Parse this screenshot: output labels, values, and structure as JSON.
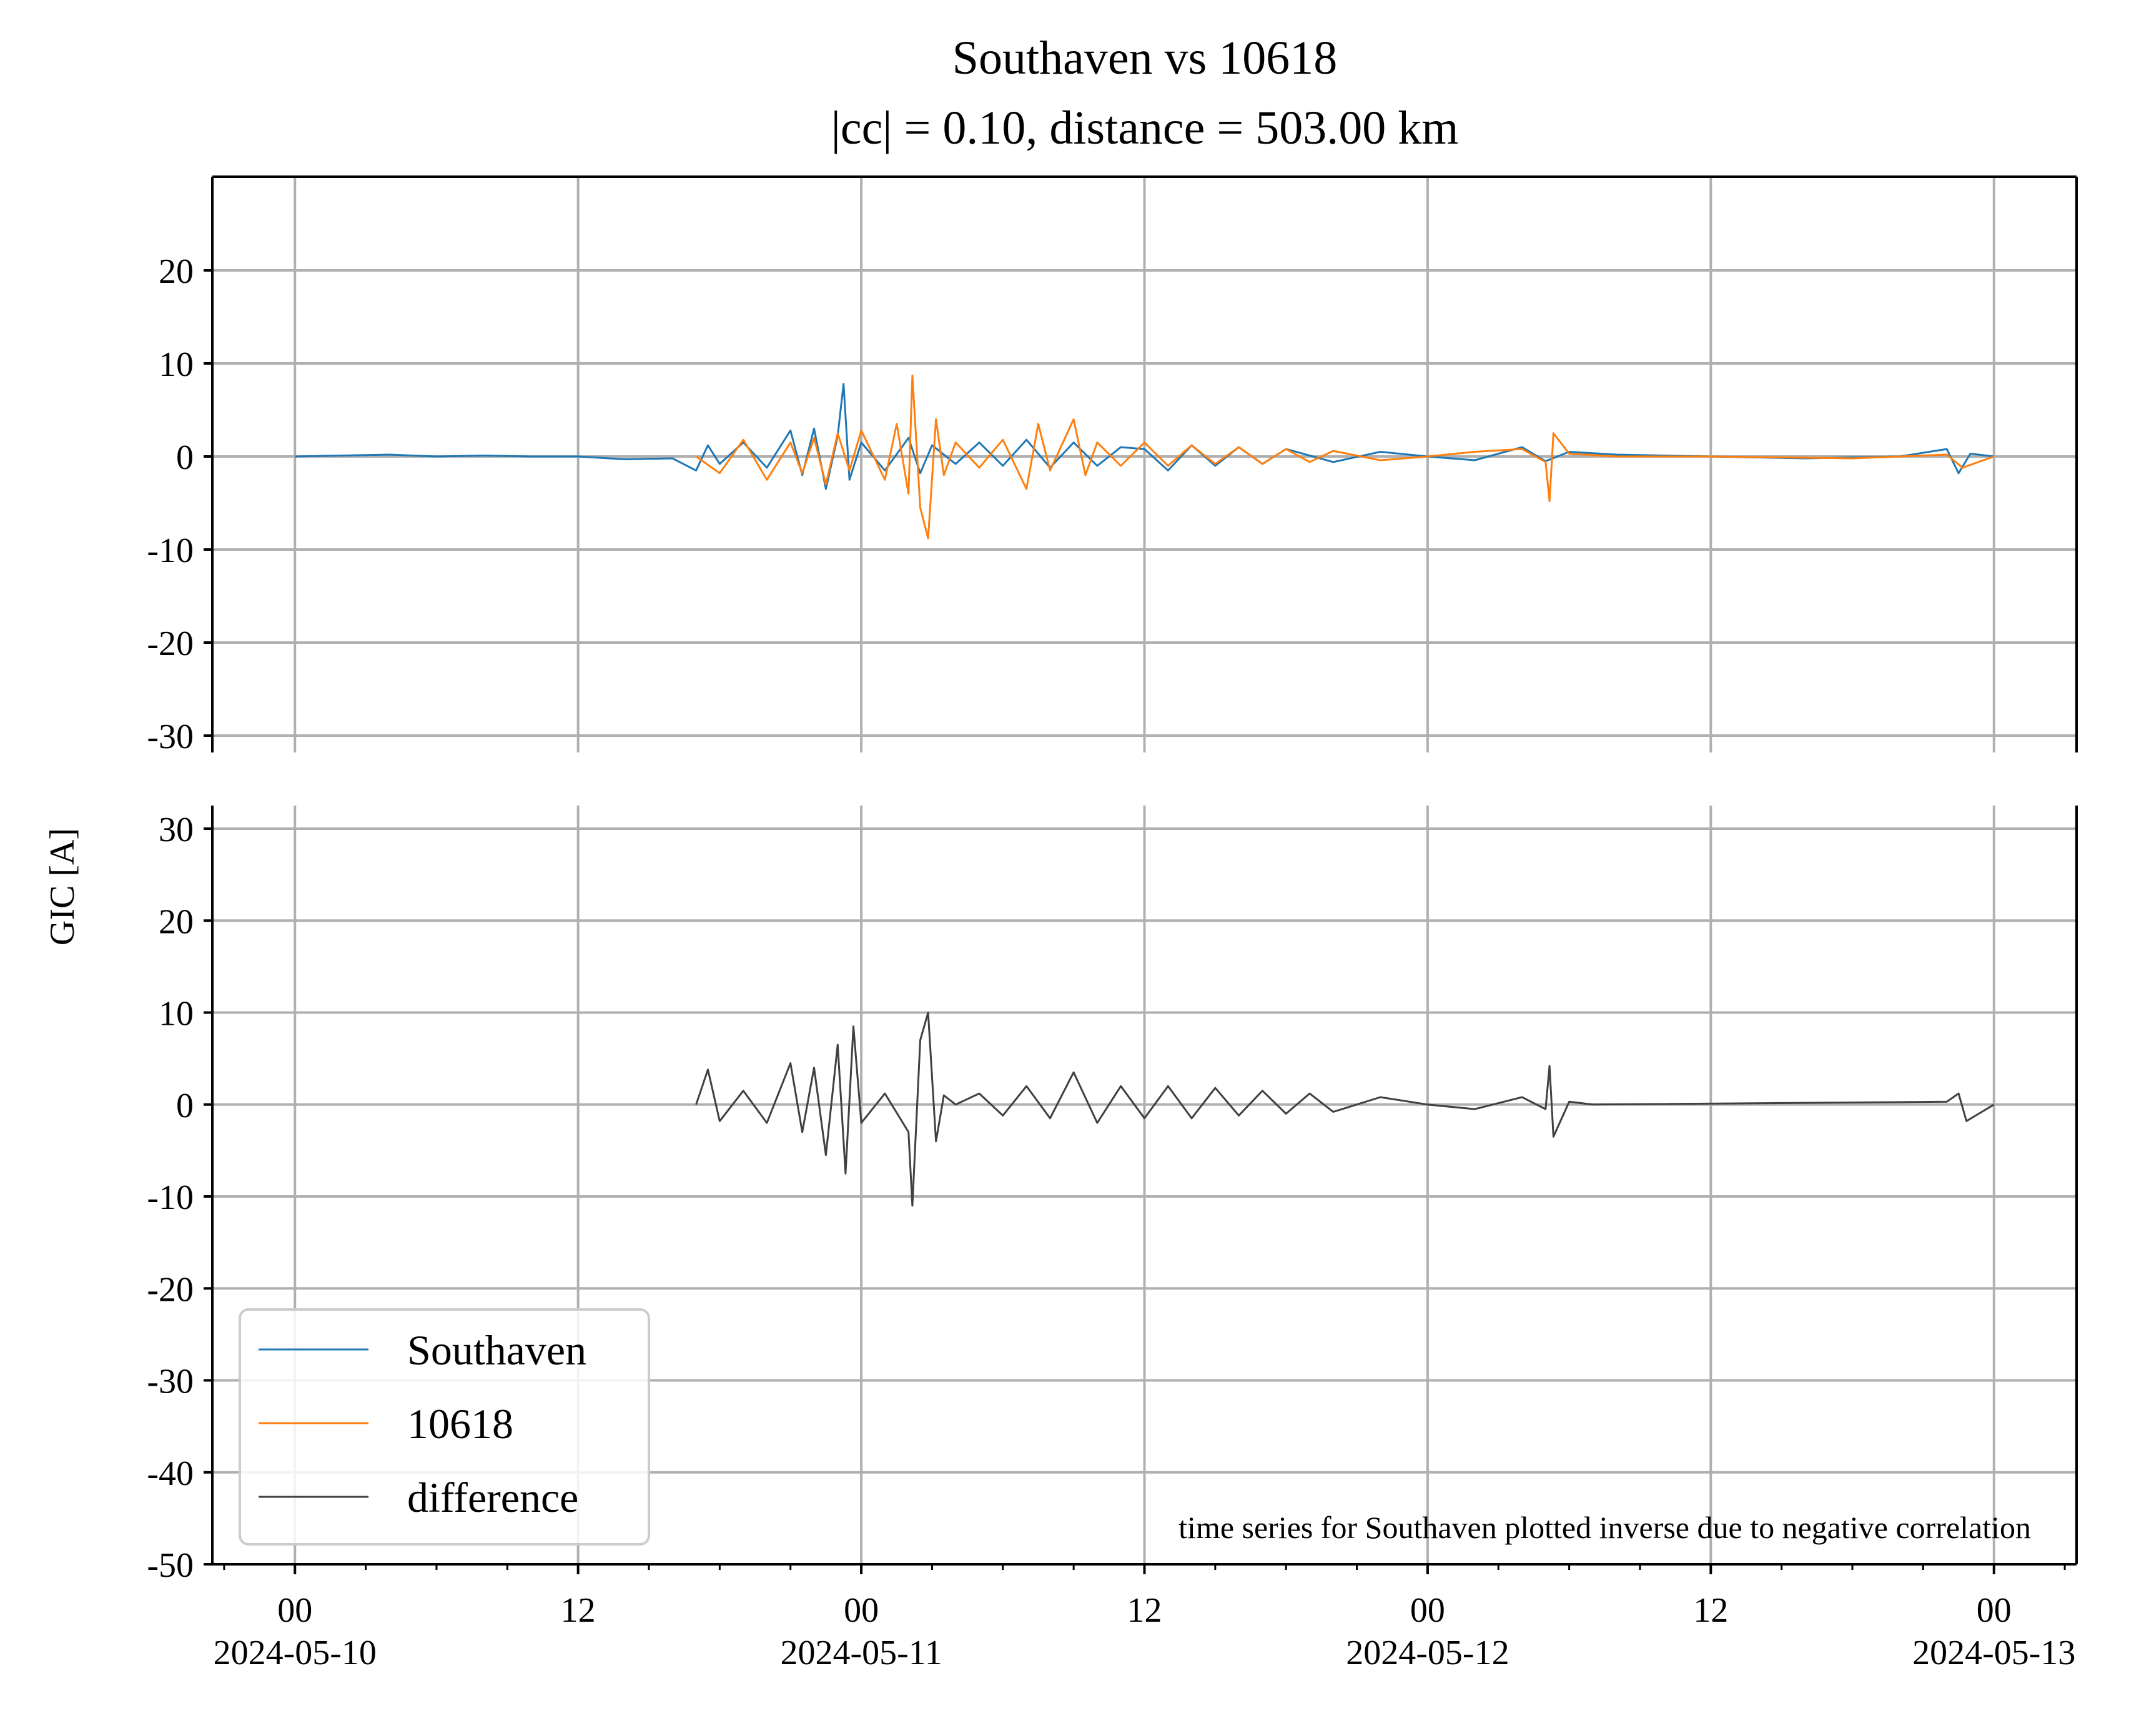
{
  "colors": {
    "southaven": "#1f77b4",
    "s10618": "#ff7f0e",
    "difference": "#404040",
    "grid": "#b0b0b0"
  },
  "chart_data": {
    "type": "line",
    "title_line1": "Southaven vs 10618",
    "title_line2": "|cc| = 0.10, distance = 503.00 km",
    "ylabel": "GIC [A]",
    "annotation": "time series for Southaven plotted inverse due to negative correlation",
    "x_range": [
      "2024-05-09T20:30",
      "2024-05-13T03:30"
    ],
    "x_ticks": [
      {
        "t": "2024-05-10T00:00",
        "time": "00",
        "date": "2024-05-10"
      },
      {
        "t": "2024-05-10T12:00",
        "time": "12",
        "date": ""
      },
      {
        "t": "2024-05-11T00:00",
        "time": "00",
        "date": "2024-05-11"
      },
      {
        "t": "2024-05-11T12:00",
        "time": "12",
        "date": ""
      },
      {
        "t": "2024-05-12T00:00",
        "time": "00",
        "date": "2024-05-12"
      },
      {
        "t": "2024-05-12T12:00",
        "time": "12",
        "date": ""
      },
      {
        "t": "2024-05-13T00:00",
        "time": "00",
        "date": "2024-05-13"
      }
    ],
    "top_panel": {
      "ylim": [
        -30,
        30
      ],
      "yticks": [
        20,
        10,
        0,
        -10,
        -20,
        -30
      ],
      "ytick_labels": [
        "20",
        "10",
        "0",
        "-10",
        "-20",
        "-30"
      ],
      "series": [
        {
          "name": "Southaven",
          "color": "#1f77b4",
          "points": [
            [
              "2024-05-10T00:00",
              0.0
            ],
            [
              "2024-05-10T02:00",
              0.1
            ],
            [
              "2024-05-10T04:00",
              0.2
            ],
            [
              "2024-05-10T06:00",
              0.0
            ],
            [
              "2024-05-10T08:00",
              0.1
            ],
            [
              "2024-05-10T10:00",
              0.0
            ],
            [
              "2024-05-10T12:00",
              0.0
            ],
            [
              "2024-05-10T14:00",
              -0.3
            ],
            [
              "2024-05-10T16:00",
              -0.2
            ],
            [
              "2024-05-10T17:00",
              -1.5
            ],
            [
              "2024-05-10T17:30",
              1.2
            ],
            [
              "2024-05-10T18:00",
              -0.8
            ],
            [
              "2024-05-10T19:00",
              1.5
            ],
            [
              "2024-05-10T20:00",
              -1.2
            ],
            [
              "2024-05-10T21:00",
              2.8
            ],
            [
              "2024-05-10T21:30",
              -2.0
            ],
            [
              "2024-05-10T22:00",
              3.0
            ],
            [
              "2024-05-10T22:30",
              -3.5
            ],
            [
              "2024-05-10T23:00",
              2.2
            ],
            [
              "2024-05-10T23:15",
              7.8
            ],
            [
              "2024-05-10T23:30",
              -2.5
            ],
            [
              "2024-05-11T00:00",
              1.5
            ],
            [
              "2024-05-11T01:00",
              -1.5
            ],
            [
              "2024-05-11T02:00",
              2.0
            ],
            [
              "2024-05-11T02:30",
              -1.8
            ],
            [
              "2024-05-11T03:00",
              1.2
            ],
            [
              "2024-05-11T04:00",
              -0.8
            ],
            [
              "2024-05-11T05:00",
              1.5
            ],
            [
              "2024-05-11T06:00",
              -1.0
            ],
            [
              "2024-05-11T07:00",
              1.8
            ],
            [
              "2024-05-11T08:00",
              -1.2
            ],
            [
              "2024-05-11T09:00",
              1.5
            ],
            [
              "2024-05-11T10:00",
              -1.0
            ],
            [
              "2024-05-11T11:00",
              1.0
            ],
            [
              "2024-05-11T12:00",
              0.8
            ],
            [
              "2024-05-11T13:00",
              -1.5
            ],
            [
              "2024-05-11T14:00",
              1.2
            ],
            [
              "2024-05-11T15:00",
              -1.0
            ],
            [
              "2024-05-11T16:00",
              1.0
            ],
            [
              "2024-05-11T17:00",
              -0.8
            ],
            [
              "2024-05-11T18:00",
              0.8
            ],
            [
              "2024-05-11T20:00",
              -0.6
            ],
            [
              "2024-05-11T22:00",
              0.5
            ],
            [
              "2024-05-12T00:00",
              0.0
            ],
            [
              "2024-05-12T02:00",
              -0.4
            ],
            [
              "2024-05-12T04:00",
              1.0
            ],
            [
              "2024-05-12T05:00",
              -0.5
            ],
            [
              "2024-05-12T06:00",
              0.5
            ],
            [
              "2024-05-12T08:00",
              0.2
            ],
            [
              "2024-05-12T12:00",
              0.0
            ],
            [
              "2024-05-12T16:00",
              -0.2
            ],
            [
              "2024-05-12T20:00",
              0.0
            ],
            [
              "2024-05-12T22:00",
              0.8
            ],
            [
              "2024-05-12T22:30",
              -1.8
            ],
            [
              "2024-05-12T23:00",
              0.3
            ],
            [
              "2024-05-13T00:00",
              0.0
            ]
          ]
        },
        {
          "name": "10618",
          "color": "#ff7f0e",
          "points": [
            [
              "2024-05-10T17:00",
              0.0
            ],
            [
              "2024-05-10T18:00",
              -1.8
            ],
            [
              "2024-05-10T19:00",
              1.8
            ],
            [
              "2024-05-10T20:00",
              -2.5
            ],
            [
              "2024-05-10T21:00",
              1.5
            ],
            [
              "2024-05-10T21:30",
              -1.8
            ],
            [
              "2024-05-10T22:00",
              2.0
            ],
            [
              "2024-05-10T22:30",
              -3.0
            ],
            [
              "2024-05-10T23:00",
              2.5
            ],
            [
              "2024-05-10T23:30",
              -1.5
            ],
            [
              "2024-05-11T00:00",
              2.8
            ],
            [
              "2024-05-11T01:00",
              -2.5
            ],
            [
              "2024-05-11T01:30",
              3.5
            ],
            [
              "2024-05-11T02:00",
              -4.0
            ],
            [
              "2024-05-11T02:10",
              8.7
            ],
            [
              "2024-05-11T02:30",
              -5.5
            ],
            [
              "2024-05-11T02:50",
              -8.8
            ],
            [
              "2024-05-11T03:10",
              4.0
            ],
            [
              "2024-05-11T03:30",
              -2.0
            ],
            [
              "2024-05-11T04:00",
              1.5
            ],
            [
              "2024-05-11T05:00",
              -1.2
            ],
            [
              "2024-05-11T06:00",
              1.8
            ],
            [
              "2024-05-11T07:00",
              -3.5
            ],
            [
              "2024-05-11T07:30",
              3.5
            ],
            [
              "2024-05-11T08:00",
              -1.5
            ],
            [
              "2024-05-11T09:00",
              4.0
            ],
            [
              "2024-05-11T09:30",
              -2.0
            ],
            [
              "2024-05-11T10:00",
              1.5
            ],
            [
              "2024-05-11T11:00",
              -1.0
            ],
            [
              "2024-05-11T12:00",
              1.5
            ],
            [
              "2024-05-11T13:00",
              -1.0
            ],
            [
              "2024-05-11T14:00",
              1.2
            ],
            [
              "2024-05-11T15:00",
              -0.8
            ],
            [
              "2024-05-11T16:00",
              1.0
            ],
            [
              "2024-05-11T17:00",
              -0.8
            ],
            [
              "2024-05-11T18:00",
              0.8
            ],
            [
              "2024-05-11T19:00",
              -0.6
            ],
            [
              "2024-05-11T20:00",
              0.6
            ],
            [
              "2024-05-11T22:00",
              -0.4
            ],
            [
              "2024-05-12T00:00",
              0.0
            ],
            [
              "2024-05-12T02:00",
              0.5
            ],
            [
              "2024-05-12T04:00",
              0.8
            ],
            [
              "2024-05-12T05:00",
              -0.6
            ],
            [
              "2024-05-12T05:10",
              -4.8
            ],
            [
              "2024-05-12T05:20",
              2.5
            ],
            [
              "2024-05-12T06:00",
              0.3
            ],
            [
              "2024-05-12T08:00",
              0.0
            ],
            [
              "2024-05-12T12:00",
              0.0
            ],
            [
              "2024-05-12T18:00",
              -0.2
            ],
            [
              "2024-05-12T22:00",
              0.2
            ],
            [
              "2024-05-12T22:40",
              -1.2
            ],
            [
              "2024-05-13T00:00",
              0.0
            ]
          ]
        }
      ]
    },
    "bottom_panel": {
      "ylim": [
        -50,
        32
      ],
      "yticks": [
        30,
        20,
        10,
        0,
        -10,
        -20,
        -30,
        -40,
        -50
      ],
      "ytick_labels": [
        "30",
        "20",
        "10",
        "0",
        "-10",
        "-20",
        "-30",
        "-40",
        "-50"
      ],
      "series": [
        {
          "name": "difference",
          "color": "#404040",
          "points": [
            [
              "2024-05-10T17:00",
              0.0
            ],
            [
              "2024-05-10T17:30",
              3.8
            ],
            [
              "2024-05-10T18:00",
              -1.8
            ],
            [
              "2024-05-10T19:00",
              1.5
            ],
            [
              "2024-05-10T20:00",
              -2.0
            ],
            [
              "2024-05-10T21:00",
              4.5
            ],
            [
              "2024-05-10T21:30",
              -3.0
            ],
            [
              "2024-05-10T22:00",
              4.0
            ],
            [
              "2024-05-10T22:30",
              -5.5
            ],
            [
              "2024-05-10T23:00",
              6.5
            ],
            [
              "2024-05-10T23:20",
              -7.5
            ],
            [
              "2024-05-10T23:40",
              8.5
            ],
            [
              "2024-05-11T00:00",
              -2.0
            ],
            [
              "2024-05-11T01:00",
              1.2
            ],
            [
              "2024-05-11T02:00",
              -3.0
            ],
            [
              "2024-05-11T02:10",
              -11.0
            ],
            [
              "2024-05-11T02:30",
              7.0
            ],
            [
              "2024-05-11T02:50",
              10.0
            ],
            [
              "2024-05-11T03:10",
              -4.0
            ],
            [
              "2024-05-11T03:30",
              1.0
            ],
            [
              "2024-05-11T04:00",
              0.0
            ],
            [
              "2024-05-11T05:00",
              1.2
            ],
            [
              "2024-05-11T06:00",
              -1.2
            ],
            [
              "2024-05-11T07:00",
              2.0
            ],
            [
              "2024-05-11T08:00",
              -1.5
            ],
            [
              "2024-05-11T09:00",
              3.5
            ],
            [
              "2024-05-11T10:00",
              -2.0
            ],
            [
              "2024-05-11T11:00",
              2.0
            ],
            [
              "2024-05-11T12:00",
              -1.5
            ],
            [
              "2024-05-11T13:00",
              2.0
            ],
            [
              "2024-05-11T14:00",
              -1.5
            ],
            [
              "2024-05-11T15:00",
              1.8
            ],
            [
              "2024-05-11T16:00",
              -1.2
            ],
            [
              "2024-05-11T17:00",
              1.5
            ],
            [
              "2024-05-11T18:00",
              -1.0
            ],
            [
              "2024-05-11T19:00",
              1.2
            ],
            [
              "2024-05-11T20:00",
              -0.8
            ],
            [
              "2024-05-11T22:00",
              0.8
            ],
            [
              "2024-05-12T00:00",
              0.0
            ],
            [
              "2024-05-12T02:00",
              -0.5
            ],
            [
              "2024-05-12T04:00",
              0.8
            ],
            [
              "2024-05-12T05:00",
              -0.5
            ],
            [
              "2024-05-12T05:10",
              4.2
            ],
            [
              "2024-05-12T05:20",
              -3.5
            ],
            [
              "2024-05-12T06:00",
              0.3
            ],
            [
              "2024-05-12T07:00",
              0.0
            ],
            [
              "2024-05-12T22:00",
              0.3
            ],
            [
              "2024-05-12T22:30",
              1.2
            ],
            [
              "2024-05-12T22:50",
              -1.8
            ],
            [
              "2024-05-13T00:00",
              0.0
            ]
          ]
        }
      ]
    },
    "legend": {
      "location": "lower-left",
      "entries": [
        "Southaven",
        "10618",
        "difference"
      ]
    },
    "grid": true
  }
}
